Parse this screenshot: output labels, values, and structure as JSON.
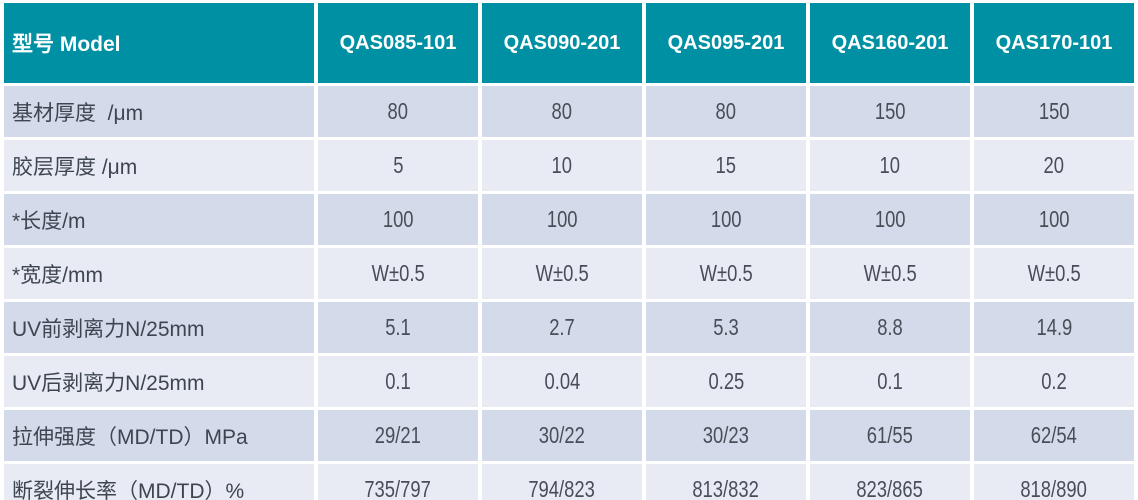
{
  "chart_data": {
    "type": "table",
    "title": "型号 Model specification table",
    "columns": [
      "型号 Model",
      "QAS085-101",
      "QAS090-201",
      "QAS095-201",
      "QAS160-201",
      "QAS170-101"
    ],
    "rows": [
      {
        "label": "基材厚度  /μm",
        "values": [
          "80",
          "80",
          "80",
          "150",
          "150"
        ]
      },
      {
        "label": "胶层厚度 /μm",
        "values": [
          "5",
          "10",
          "15",
          "10",
          "20"
        ]
      },
      {
        "label": "*长度/m",
        "values": [
          "100",
          "100",
          "100",
          "100",
          "100"
        ]
      },
      {
        "label": "*宽度/mm",
        "values": [
          "W±0.5",
          "W±0.5",
          "W±0.5",
          "W±0.5",
          "W±0.5"
        ]
      },
      {
        "label": "UV前剥离力N/25mm",
        "values": [
          "5.1",
          "2.7",
          "5.3",
          "8.8",
          "14.9"
        ]
      },
      {
        "label": "UV后剥离力N/25mm",
        "values": [
          "0.1",
          "0.04",
          "0.25",
          "0.1",
          "0.2"
        ]
      },
      {
        "label": "拉伸强度（MD/TD）MPa",
        "values": [
          "29/21",
          "30/22",
          "30/23",
          "61/55",
          "62/54"
        ]
      },
      {
        "label": "断裂伸长率（MD/TD）%",
        "values": [
          "735/797",
          "794/823",
          "813/832",
          "823/865",
          "818/890"
        ]
      }
    ],
    "layout": {
      "header_background": "#0090A3",
      "header_text_color": "#FFFFFF",
      "row_odd_background": "#D3DAE9",
      "row_even_background": "#E8EBF4",
      "label_text_color": "#3D4551",
      "value_text_color": "#484E58",
      "grid_gap_color": "#FFFFFF"
    }
  }
}
